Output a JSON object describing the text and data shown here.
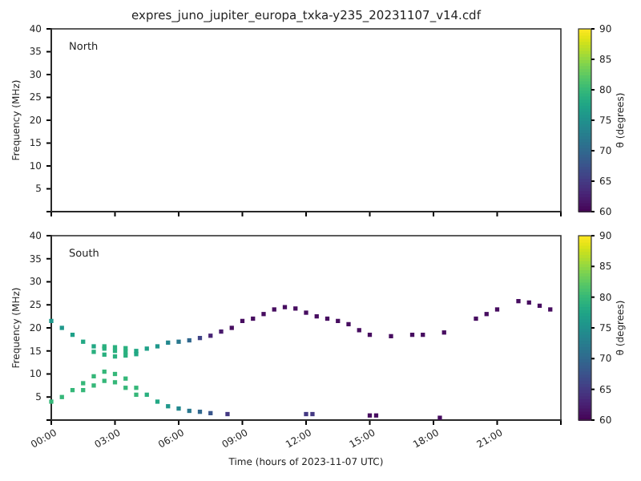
{
  "chart_data": [
    {
      "type": "scatter",
      "title": "expres_juno_jupiter_europa_txka-y235_20231107_v14.cdf",
      "ylabel": "Frequency (MHz)",
      "annotations": [
        "North"
      ],
      "tick_labels": "y",
      "xlim": [
        0,
        24
      ],
      "xticks": [
        {
          "value": 0,
          "label": null
        },
        {
          "value": 3,
          "label": null
        },
        {
          "value": 6,
          "label": null
        },
        {
          "value": 9,
          "label": null
        },
        {
          "value": 12,
          "label": null
        },
        {
          "value": 15,
          "label": null
        },
        {
          "value": 18,
          "label": null
        },
        {
          "value": 21,
          "label": null
        }
      ],
      "ylim": [
        0,
        40
      ],
      "yticks": [
        5,
        10,
        15,
        20,
        25,
        30,
        35,
        40
      ],
      "clabel": "θ (degrees)",
      "clim": [
        60,
        90
      ],
      "cticks": [
        60,
        65,
        70,
        75,
        80,
        85,
        90
      ]
    },
    {
      "type": "scatter",
      "xlabel": "Time (hours of 2023-11-07 UTC)",
      "ylabel": "Frequency (MHz)",
      "annotations": [
        "South"
      ],
      "marker": "square",
      "x": [
        0,
        0.5,
        1,
        1.5,
        2,
        2.5,
        3,
        3.5,
        4,
        4.5,
        5,
        5.5,
        6,
        6.5,
        7,
        7.5,
        8,
        8.5,
        9,
        9.5,
        10,
        10.5,
        11,
        11.5,
        12,
        12.5,
        13,
        13.5,
        14,
        14.5,
        15,
        16,
        17,
        17.5,
        18.5,
        20,
        20.5,
        21,
        22,
        22.5,
        23,
        23.5,
        2,
        2.5,
        3,
        3.5,
        4,
        2.5,
        3,
        3.5,
        0,
        0.5,
        1,
        1.5,
        2,
        2.5,
        3,
        3.5,
        4,
        4.5,
        5,
        5.5,
        6,
        6.5,
        7,
        7.5,
        8.3,
        1.5,
        2,
        2.5,
        3,
        3.5,
        4,
        12,
        12.3,
        15,
        15.3,
        18.3
      ],
      "values": [
        21.5,
        20,
        18.5,
        17,
        16,
        15.5,
        15,
        14.8,
        15,
        15.5,
        16,
        16.8,
        17,
        17.3,
        17.8,
        18.3,
        19.2,
        20,
        21.5,
        22,
        23,
        24,
        24.5,
        24.2,
        23.3,
        22.5,
        22,
        21.5,
        20.8,
        19.5,
        18.5,
        18.2,
        18.5,
        18.5,
        19,
        22,
        23,
        24,
        25.8,
        25.5,
        24.8,
        24,
        14.8,
        14.2,
        13.8,
        14,
        14.3,
        16,
        15.8,
        15.6,
        4,
        5,
        6.5,
        8,
        9.5,
        10.5,
        10,
        9,
        7,
        5.5,
        4,
        3,
        2.5,
        2,
        1.8,
        1.5,
        1.3,
        6.5,
        7.5,
        8.5,
        8.2,
        7,
        5.5,
        1.3,
        1.3,
        1,
        1,
        0.5
      ],
      "cvalues": [
        76,
        76,
        77,
        78,
        78,
        79,
        79,
        79,
        78,
        77,
        76,
        74,
        72,
        70,
        66,
        63,
        62,
        61,
        61,
        61,
        61,
        61,
        61,
        61,
        61,
        61,
        61,
        61,
        61,
        61,
        61,
        61,
        61,
        61,
        61,
        61,
        61,
        61,
        61,
        61,
        61,
        61,
        79,
        79,
        79,
        79,
        78,
        79,
        79,
        79,
        80,
        80,
        80,
        80,
        80,
        80,
        80,
        80,
        80,
        79,
        78,
        76,
        74,
        72,
        70,
        68,
        65,
        80,
        80,
        80,
        80,
        80,
        80,
        65,
        65,
        61,
        61,
        61
      ],
      "xlim": [
        0,
        24
      ],
      "xticks": [
        {
          "value": 0,
          "label": "00:00"
        },
        {
          "value": 3,
          "label": "03:00"
        },
        {
          "value": 6,
          "label": "06:00"
        },
        {
          "value": 9,
          "label": "09:00"
        },
        {
          "value": 12,
          "label": "12:00"
        },
        {
          "value": 15,
          "label": "15:00"
        },
        {
          "value": 18,
          "label": "18:00"
        },
        {
          "value": 21,
          "label": "21:00"
        }
      ],
      "ylim": [
        0,
        40
      ],
      "yticks": [
        5,
        10,
        15,
        20,
        25,
        30,
        35,
        40
      ],
      "clabel": "θ (degrees)",
      "clim": [
        60,
        90
      ],
      "cticks": [
        60,
        65,
        70,
        75,
        80,
        85,
        90
      ]
    }
  ]
}
